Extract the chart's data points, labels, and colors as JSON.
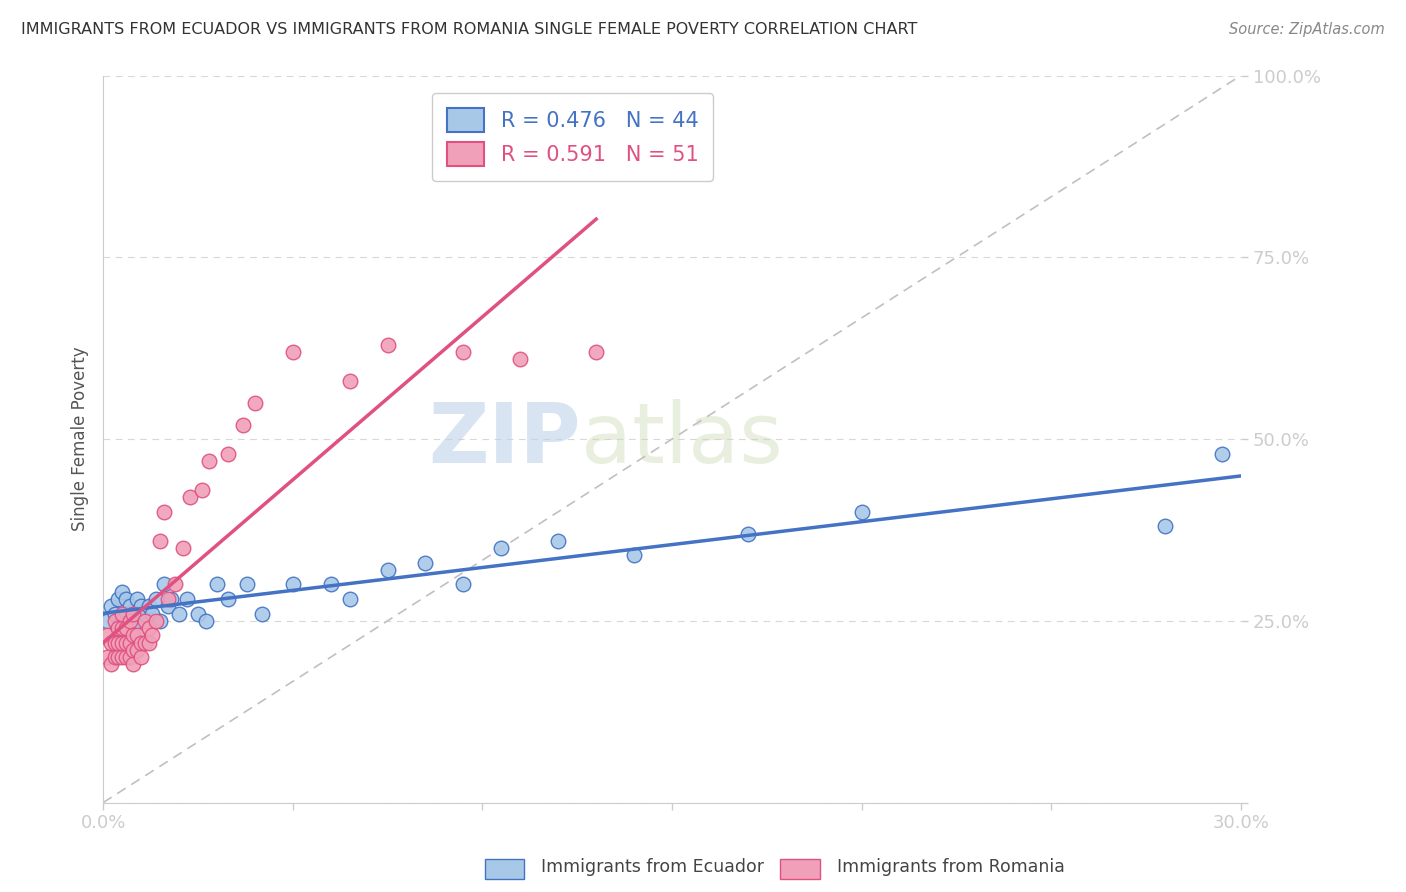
{
  "title": "IMMIGRANTS FROM ECUADOR VS IMMIGRANTS FROM ROMANIA SINGLE FEMALE POVERTY CORRELATION CHART",
  "source": "Source: ZipAtlas.com",
  "ylabel": "Single Female Poverty",
  "xlim": [
    0.0,
    0.3
  ],
  "ylim": [
    0.0,
    1.0
  ],
  "x_tick_positions": [
    0.0,
    0.05,
    0.1,
    0.15,
    0.2,
    0.25,
    0.3
  ],
  "x_tick_labels": [
    "0.0%",
    "",
    "",
    "",
    "",
    "",
    "30.0%"
  ],
  "y_tick_positions": [
    0.0,
    0.25,
    0.5,
    0.75,
    1.0
  ],
  "y_tick_labels": [
    "",
    "25.0%",
    "50.0%",
    "75.0%",
    "100.0%"
  ],
  "ecuador_color": "#a8c8e8",
  "romania_color": "#f0a0b8",
  "ecuador_line_color": "#4472c4",
  "romania_line_color": "#e05080",
  "diagonal_color": "#c0c0c0",
  "R_ecuador": 0.476,
  "N_ecuador": 44,
  "R_romania": 0.591,
  "N_romania": 51,
  "ecuador_x": [
    0.001,
    0.002,
    0.003,
    0.004,
    0.004,
    0.005,
    0.005,
    0.006,
    0.006,
    0.007,
    0.007,
    0.008,
    0.009,
    0.009,
    0.01,
    0.011,
    0.012,
    0.013,
    0.014,
    0.015,
    0.016,
    0.017,
    0.018,
    0.02,
    0.022,
    0.025,
    0.027,
    0.03,
    0.033,
    0.038,
    0.042,
    0.05,
    0.06,
    0.065,
    0.075,
    0.085,
    0.095,
    0.105,
    0.12,
    0.14,
    0.17,
    0.2,
    0.28,
    0.295
  ],
  "ecuador_y": [
    0.25,
    0.27,
    0.26,
    0.24,
    0.28,
    0.25,
    0.29,
    0.26,
    0.28,
    0.25,
    0.27,
    0.26,
    0.25,
    0.28,
    0.27,
    0.26,
    0.27,
    0.26,
    0.28,
    0.25,
    0.3,
    0.27,
    0.28,
    0.26,
    0.28,
    0.26,
    0.25,
    0.3,
    0.28,
    0.3,
    0.26,
    0.3,
    0.3,
    0.28,
    0.32,
    0.33,
    0.3,
    0.35,
    0.36,
    0.34,
    0.37,
    0.4,
    0.38,
    0.48
  ],
  "romania_x": [
    0.001,
    0.001,
    0.002,
    0.002,
    0.003,
    0.003,
    0.003,
    0.004,
    0.004,
    0.004,
    0.005,
    0.005,
    0.005,
    0.005,
    0.006,
    0.006,
    0.006,
    0.007,
    0.007,
    0.007,
    0.008,
    0.008,
    0.008,
    0.008,
    0.009,
    0.009,
    0.01,
    0.01,
    0.011,
    0.011,
    0.012,
    0.012,
    0.013,
    0.014,
    0.015,
    0.016,
    0.017,
    0.019,
    0.021,
    0.023,
    0.026,
    0.028,
    0.033,
    0.037,
    0.04,
    0.05,
    0.065,
    0.075,
    0.095,
    0.11,
    0.13
  ],
  "romania_y": [
    0.2,
    0.23,
    0.19,
    0.22,
    0.2,
    0.22,
    0.25,
    0.2,
    0.22,
    0.24,
    0.2,
    0.22,
    0.24,
    0.26,
    0.2,
    0.22,
    0.24,
    0.2,
    0.22,
    0.25,
    0.19,
    0.21,
    0.23,
    0.26,
    0.21,
    0.23,
    0.2,
    0.22,
    0.22,
    0.25,
    0.22,
    0.24,
    0.23,
    0.25,
    0.36,
    0.4,
    0.28,
    0.3,
    0.35,
    0.42,
    0.43,
    0.47,
    0.48,
    0.52,
    0.55,
    0.62,
    0.58,
    0.63,
    0.62,
    0.61,
    0.62
  ],
  "watermark_zip": "ZIP",
  "watermark_atlas": "atlas",
  "background_color": "#ffffff",
  "grid_color": "#d8d8d8",
  "title_color": "#333333",
  "source_color": "#888888",
  "ylabel_color": "#555555",
  "tick_color": "#4472c4",
  "spine_color": "#cccccc"
}
